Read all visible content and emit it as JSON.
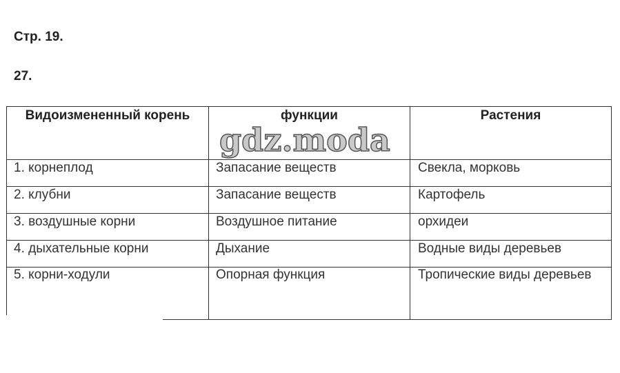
{
  "page_ref": "Стр. 19.",
  "task_number": "27.",
  "watermark": "gdz.moda",
  "table": {
    "headers": [
      "Видоизмененный корень",
      "функции",
      "Растения"
    ],
    "rows": [
      [
        "1. корнеплод",
        "Запасание веществ",
        "Свекла, морковь"
      ],
      [
        "2. клубни",
        "Запасание веществ",
        "Картофель"
      ],
      [
        "3. воздушные корни",
        "Воздушное питание",
        "орхидеи"
      ],
      [
        "4. дыхательные корни",
        "Дыхание",
        "Водные виды деревьев"
      ],
      [
        "5. корни-ходули",
        "Опорная функция",
        "Тропические виды деревьев"
      ]
    ]
  }
}
